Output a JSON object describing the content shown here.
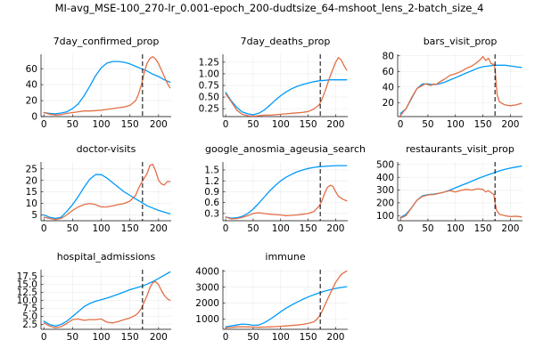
{
  "figure": {
    "title": "MI-avg_MSE-100_270-lr_0.001-epoch_200-dudtsize_64-mshoot_lens_2-batch_size_4",
    "colors": {
      "series1": "#009AFA",
      "series2": "#E26F46"
    }
  },
  "chart_data": [
    {
      "type": "line",
      "title": "7day_confirmed_prop",
      "xlim": [
        -5,
        222
      ],
      "ylim": [
        0,
        78
      ],
      "xticks": [
        0,
        50,
        100,
        150,
        200
      ],
      "yticks": [
        0,
        20,
        40,
        60
      ],
      "ytick_labels": [
        "0",
        "20",
        "40",
        "60"
      ],
      "vline_x": 172,
      "series": [
        {
          "x": [
            0,
            10,
            20,
            30,
            40,
            50,
            60,
            70,
            80,
            90,
            100,
            110,
            120,
            130,
            140,
            150,
            160,
            170,
            180,
            190,
            200,
            210,
            220
          ],
          "y": [
            5,
            4,
            3.5,
            4.5,
            6,
            10,
            16,
            26,
            38,
            51,
            61,
            67,
            69,
            69,
            68,
            66,
            63,
            60,
            57,
            53,
            50,
            46,
            43
          ]
        },
        {
          "x": [
            0,
            10,
            20,
            30,
            40,
            50,
            60,
            70,
            80,
            90,
            100,
            110,
            120,
            130,
            140,
            150,
            160,
            165,
            170,
            175,
            180,
            185,
            190,
            195,
            200,
            205,
            210,
            215,
            220
          ],
          "y": [
            5,
            3,
            2,
            2.5,
            4,
            5,
            6,
            7,
            7,
            7.5,
            8,
            9,
            10,
            11,
            12,
            14,
            20,
            28,
            40,
            55,
            67,
            73,
            75,
            72,
            66,
            58,
            50,
            42,
            36
          ]
        }
      ]
    },
    {
      "type": "line",
      "title": "7day_deaths_prop",
      "xlim": [
        -5,
        222
      ],
      "ylim": [
        0.08,
        1.42
      ],
      "xticks": [
        0,
        50,
        100,
        150,
        200
      ],
      "yticks": [
        0.25,
        0.5,
        0.75,
        1.0,
        1.25
      ],
      "ytick_labels": [
        "0.25",
        "0.50",
        "0.75",
        "1.00",
        "1.25"
      ],
      "vline_x": 172,
      "series": [
        {
          "x": [
            0,
            10,
            20,
            30,
            40,
            50,
            60,
            70,
            80,
            90,
            100,
            110,
            120,
            130,
            140,
            150,
            160,
            170,
            180,
            190,
            200,
            210,
            220
          ],
          "y": [
            0.6,
            0.42,
            0.28,
            0.18,
            0.14,
            0.12,
            0.15,
            0.22,
            0.32,
            0.43,
            0.53,
            0.61,
            0.68,
            0.73,
            0.77,
            0.8,
            0.83,
            0.85,
            0.86,
            0.87,
            0.87,
            0.87,
            0.87
          ]
        },
        {
          "x": [
            0,
            10,
            20,
            30,
            40,
            50,
            60,
            70,
            80,
            90,
            100,
            110,
            120,
            130,
            140,
            150,
            160,
            170,
            175,
            180,
            190,
            200,
            205,
            210,
            215,
            220
          ],
          "y": [
            0.57,
            0.4,
            0.22,
            0.13,
            0.1,
            0.09,
            0.1,
            0.11,
            0.11,
            0.12,
            0.13,
            0.14,
            0.15,
            0.16,
            0.17,
            0.19,
            0.24,
            0.33,
            0.45,
            0.6,
            0.95,
            1.25,
            1.35,
            1.3,
            1.18,
            1.08
          ]
        }
      ]
    },
    {
      "type": "line",
      "title": "bars_visit_prop",
      "xlim": [
        -5,
        222
      ],
      "ylim": [
        2,
        82
      ],
      "xticks": [
        0,
        50,
        100,
        150,
        200
      ],
      "yticks": [
        20,
        40,
        60,
        80
      ],
      "ytick_labels": [
        "20",
        "40",
        "60",
        "80"
      ],
      "vline_x": 172,
      "series": [
        {
          "x": [
            0,
            10,
            20,
            30,
            40,
            50,
            60,
            70,
            80,
            90,
            100,
            110,
            120,
            130,
            140,
            150,
            160,
            170,
            180,
            190,
            200,
            210,
            220
          ],
          "y": [
            6,
            12,
            25,
            38,
            44,
            44,
            43,
            44,
            46,
            49,
            52,
            55,
            58,
            61,
            64,
            66,
            67,
            68,
            68,
            68,
            67,
            66,
            65
          ]
        },
        {
          "x": [
            0,
            5,
            10,
            20,
            30,
            40,
            45,
            50,
            55,
            60,
            65,
            70,
            80,
            90,
            100,
            110,
            120,
            130,
            140,
            145,
            150,
            155,
            160,
            165,
            170,
            172,
            174,
            176,
            180,
            190,
            200,
            210,
            220
          ],
          "y": [
            3,
            8,
            12,
            26,
            38,
            42,
            44,
            43,
            42,
            44,
            43,
            46,
            50,
            55,
            57,
            60,
            64,
            67,
            72,
            75,
            79,
            74,
            77,
            70,
            69,
            64,
            45,
            30,
            21,
            17,
            16,
            17,
            19
          ]
        }
      ]
    },
    {
      "type": "line",
      "title": "doctor-visits",
      "xlim": [
        -5,
        222
      ],
      "ylim": [
        2.5,
        28
      ],
      "xticks": [
        0,
        50,
        100,
        150,
        200
      ],
      "yticks": [
        5,
        10,
        15,
        20,
        25
      ],
      "ytick_labels": [
        "5",
        "10",
        "15",
        "20",
        "25"
      ],
      "vline_x": 172,
      "series": [
        {
          "x": [
            0,
            10,
            20,
            30,
            40,
            50,
            60,
            70,
            80,
            90,
            100,
            110,
            120,
            130,
            140,
            150,
            160,
            170,
            180,
            190,
            200,
            210,
            220
          ],
          "y": [
            5,
            4,
            3.5,
            4,
            6.5,
            9.5,
            13,
            17,
            20.5,
            22.5,
            22.5,
            21,
            19,
            17,
            15,
            13.5,
            12,
            10.5,
            9,
            8,
            7,
            6.2,
            5.5
          ]
        },
        {
          "x": [
            0,
            10,
            20,
            30,
            40,
            50,
            60,
            70,
            80,
            90,
            100,
            110,
            120,
            130,
            140,
            150,
            160,
            165,
            170,
            175,
            180,
            185,
            190,
            195,
            200,
            205,
            210,
            215,
            220
          ],
          "y": [
            4,
            3.5,
            3,
            3.5,
            5,
            7,
            8.5,
            9.5,
            10,
            9.5,
            8.5,
            8.5,
            9,
            9.5,
            10,
            11,
            13.5,
            16.5,
            19,
            21,
            23,
            26.5,
            27,
            24,
            20,
            18.5,
            18,
            19.5,
            19.5
          ]
        }
      ]
    },
    {
      "type": "line",
      "title": "google_anosmia_ageusia_search",
      "xlim": [
        -5,
        222
      ],
      "ylim": [
        0.1,
        1.72
      ],
      "xticks": [
        0,
        50,
        100,
        150,
        200
      ],
      "yticks": [
        0.3,
        0.6,
        0.9,
        1.2,
        1.5
      ],
      "ytick_labels": [
        "0.3",
        "0.6",
        "0.9",
        "1.2",
        "1.5"
      ],
      "vline_x": 172,
      "series": [
        {
          "x": [
            0,
            10,
            20,
            30,
            40,
            50,
            60,
            70,
            80,
            90,
            100,
            110,
            120,
            130,
            140,
            150,
            160,
            170,
            180,
            190,
            200,
            210,
            220
          ],
          "y": [
            0.2,
            0.17,
            0.18,
            0.22,
            0.3,
            0.42,
            0.58,
            0.75,
            0.92,
            1.07,
            1.2,
            1.3,
            1.38,
            1.45,
            1.5,
            1.54,
            1.57,
            1.59,
            1.6,
            1.61,
            1.62,
            1.62,
            1.62
          ]
        },
        {
          "x": [
            0,
            10,
            20,
            30,
            40,
            50,
            60,
            70,
            80,
            90,
            100,
            110,
            120,
            130,
            140,
            150,
            160,
            170,
            175,
            180,
            185,
            190,
            195,
            200,
            205,
            210,
            215,
            220
          ],
          "y": [
            0.2,
            0.15,
            0.16,
            0.19,
            0.24,
            0.3,
            0.32,
            0.3,
            0.28,
            0.27,
            0.26,
            0.24,
            0.25,
            0.26,
            0.28,
            0.3,
            0.35,
            0.5,
            0.65,
            0.85,
            1.02,
            1.08,
            1.05,
            0.9,
            0.78,
            0.72,
            0.68,
            0.65
          ]
        }
      ]
    },
    {
      "type": "line",
      "title": "restaurants_visit_prop",
      "xlim": [
        -5,
        222
      ],
      "ylim": [
        60,
        520
      ],
      "xticks": [
        0,
        50,
        100,
        150,
        200
      ],
      "yticks": [
        100,
        200,
        300,
        400,
        500
      ],
      "ytick_labels": [
        "100",
        "200",
        "300",
        "400",
        "500"
      ],
      "vline_x": 172,
      "series": [
        {
          "x": [
            0,
            10,
            20,
            30,
            40,
            50,
            60,
            70,
            80,
            90,
            100,
            110,
            120,
            130,
            140,
            150,
            160,
            170,
            180,
            190,
            200,
            210,
            220
          ],
          "y": [
            85,
            110,
            160,
            220,
            255,
            265,
            268,
            275,
            285,
            300,
            318,
            335,
            352,
            370,
            388,
            405,
            420,
            435,
            450,
            462,
            472,
            480,
            488
          ]
        },
        {
          "x": [
            0,
            10,
            20,
            30,
            40,
            50,
            60,
            70,
            80,
            90,
            100,
            110,
            120,
            130,
            140,
            150,
            155,
            160,
            165,
            170,
            172,
            175,
            180,
            190,
            200,
            210,
            220
          ],
          "y": [
            80,
            100,
            160,
            220,
            250,
            262,
            265,
            275,
            285,
            295,
            285,
            298,
            305,
            300,
            310,
            305,
            285,
            295,
            280,
            265,
            200,
            140,
            110,
            100,
            92,
            95,
            90
          ]
        }
      ]
    },
    {
      "type": "line",
      "title": "hospital_admissions",
      "xlim": [
        -5,
        222
      ],
      "ylim": [
        1,
        19.5
      ],
      "xticks": [
        0,
        50,
        100,
        150,
        200
      ],
      "yticks": [
        2.5,
        5.0,
        7.5,
        10.0,
        12.5,
        15.0,
        17.5
      ],
      "ytick_labels": [
        "2.5",
        "5.0",
        "7.5",
        "10.0",
        "12.5",
        "15.0",
        "17.5"
      ],
      "vline_x": 172,
      "series": [
        {
          "x": [
            0,
            10,
            20,
            30,
            40,
            50,
            60,
            70,
            80,
            90,
            100,
            110,
            120,
            130,
            140,
            150,
            160,
            170,
            180,
            190,
            200,
            210,
            220
          ],
          "y": [
            3.5,
            2.5,
            2,
            2.5,
            3.5,
            5,
            6.5,
            8,
            9,
            9.7,
            10.2,
            10.7,
            11.3,
            11.9,
            12.6,
            13.3,
            13.8,
            14.3,
            15,
            15.8,
            16.8,
            17.8,
            18.8
          ]
        },
        {
          "x": [
            0,
            10,
            20,
            30,
            40,
            50,
            60,
            70,
            80,
            90,
            100,
            110,
            120,
            130,
            140,
            150,
            160,
            165,
            170,
            175,
            180,
            185,
            190,
            195,
            200,
            205,
            210,
            215,
            220
          ],
          "y": [
            3,
            2,
            1.5,
            1.8,
            2.8,
            4,
            4.2,
            3.8,
            4,
            4,
            4.2,
            3.2,
            3,
            3.4,
            4,
            4.5,
            5.4,
            6.2,
            7.5,
            9.5,
            11.5,
            14,
            15.5,
            15.8,
            14.8,
            13,
            11.5,
            10.5,
            10
          ]
        }
      ]
    },
    {
      "type": "line",
      "title": "immune",
      "xlim": [
        -5,
        222
      ],
      "ylim": [
        350,
        4100
      ],
      "xticks": [
        0,
        50,
        100,
        150,
        200
      ],
      "yticks": [
        1000,
        2000,
        3000,
        4000
      ],
      "ytick_labels": [
        "1000",
        "2000",
        "3000",
        "4000"
      ],
      "vline_x": 172,
      "series": [
        {
          "x": [
            0,
            10,
            20,
            30,
            40,
            50,
            60,
            70,
            80,
            90,
            100,
            110,
            120,
            130,
            140,
            150,
            160,
            170,
            180,
            190,
            200,
            210,
            220
          ],
          "y": [
            500,
            560,
            620,
            680,
            660,
            600,
            620,
            760,
            960,
            1200,
            1450,
            1680,
            1880,
            2060,
            2230,
            2380,
            2520,
            2640,
            2750,
            2840,
            2920,
            2980,
            3030
          ]
        },
        {
          "x": [
            0,
            10,
            20,
            30,
            40,
            50,
            60,
            70,
            80,
            90,
            100,
            110,
            120,
            130,
            140,
            150,
            160,
            165,
            170,
            175,
            180,
            190,
            200,
            210,
            220
          ],
          "y": [
            450,
            470,
            500,
            510,
            500,
            490,
            480,
            490,
            500,
            520,
            540,
            560,
            590,
            620,
            660,
            720,
            820,
            950,
            1150,
            1450,
            1850,
            2600,
            3300,
            3800,
            4020
          ]
        }
      ]
    }
  ]
}
